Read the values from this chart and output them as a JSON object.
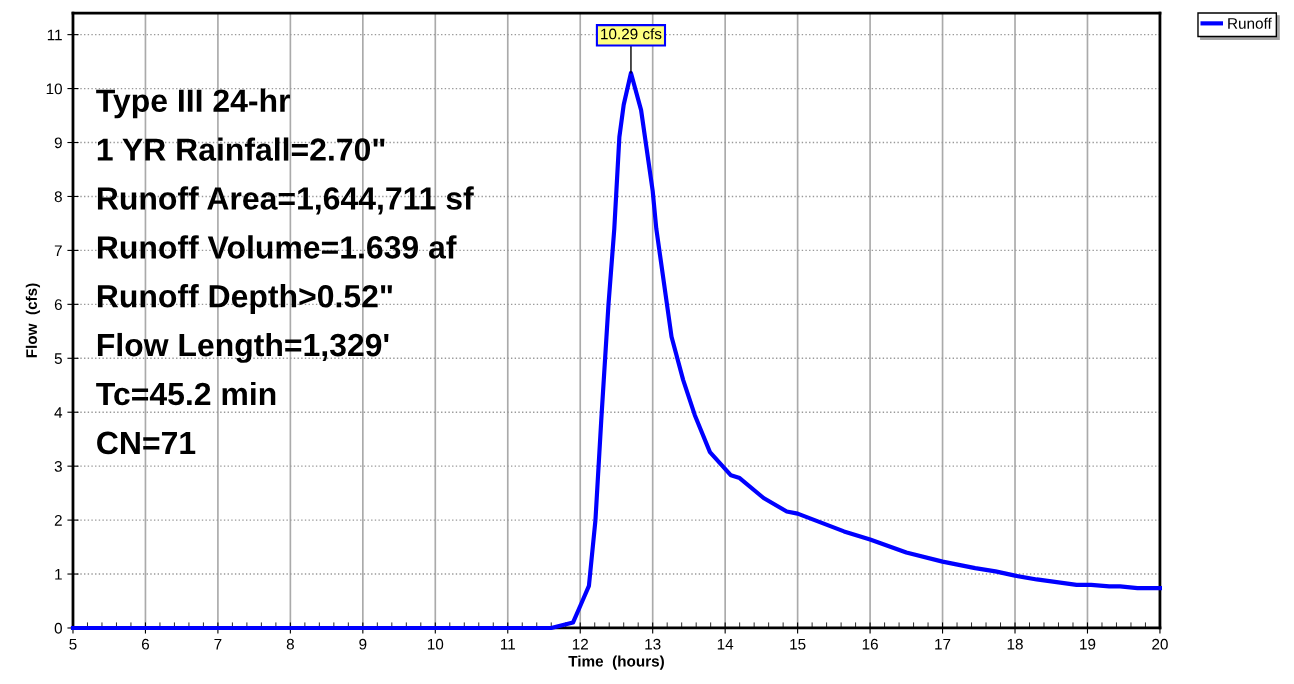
{
  "chart_data": {
    "type": "line",
    "xlabel": "Time  (hours)",
    "ylabel": "Flow  (cfs)",
    "xlim": [
      5,
      20
    ],
    "xticks": [
      5,
      6,
      7,
      8,
      9,
      10,
      11,
      12,
      13,
      14,
      15,
      16,
      17,
      18,
      19,
      20
    ],
    "ylim": [
      0,
      11.4
    ],
    "yticks": [
      0,
      1,
      2,
      3,
      4,
      5,
      6,
      7,
      8,
      9,
      10,
      11
    ],
    "grid": true,
    "legend": "top right",
    "line_style": "solid",
    "marker": "none",
    "series": [
      {
        "name": "Runoff",
        "color": "#0000ff",
        "x": [
          5,
          11.6,
          11.9,
          12.03,
          12.12,
          12.21,
          12.29,
          12.39,
          12.47,
          12.54,
          12.6,
          12.7,
          12.84,
          13.0,
          13.05,
          13.26,
          13.42,
          13.58,
          13.79,
          14.08,
          14.2,
          14.53,
          14.85,
          15.0,
          15.64,
          16.0,
          16.5,
          17.0,
          17.45,
          17.73,
          18.0,
          18.3,
          18.85,
          19.05,
          19.3,
          19.45,
          19.69,
          20.0
        ],
        "values": [
          0,
          0,
          0.1,
          0.5,
          0.78,
          2.0,
          3.85,
          6.0,
          7.4,
          9.1,
          9.7,
          10.29,
          9.6,
          8.1,
          7.4,
          5.4,
          4.6,
          3.95,
          3.26,
          2.83,
          2.78,
          2.41,
          2.16,
          2.12,
          1.79,
          1.64,
          1.4,
          1.23,
          1.11,
          1.05,
          0.97,
          0.9,
          0.8,
          0.8,
          0.77,
          0.77,
          0.74,
          0.74
        ]
      }
    ],
    "annotations": [
      {
        "text": "10.29 cfs",
        "x": 12.7,
        "y": 10.29
      },
      "Type III 24-hr",
      "1 YR Rainfall=2.70\"",
      "Runoff Area=1,644,711 sf",
      "Runoff Volume=1.639 af",
      "Runoff Depth>0.52\"",
      "Flow Length=1,329'",
      "Tc=45.2 min",
      "CN=71"
    ]
  }
}
